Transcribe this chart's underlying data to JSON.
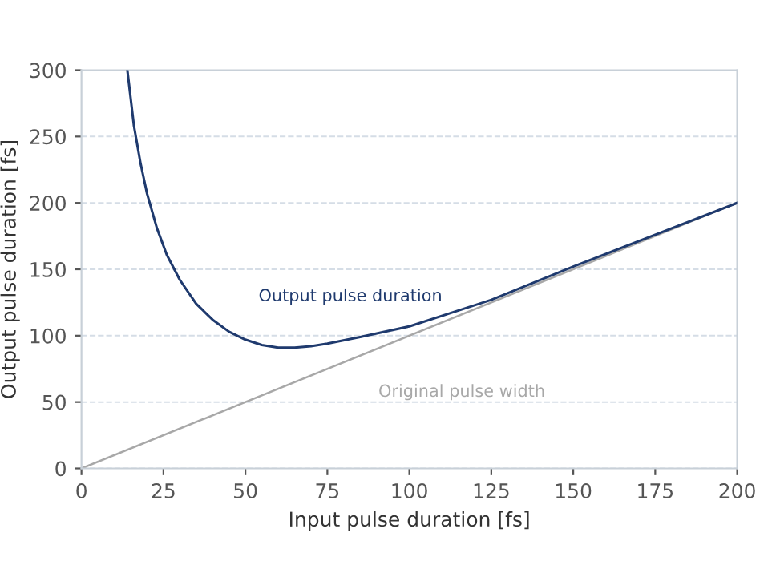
{
  "chart_data": {
    "type": "line",
    "xlabel": "Input pulse duration [fs]",
    "ylabel": "Output pulse duration [fs]",
    "xlim": [
      0,
      200
    ],
    "ylim": [
      0,
      300
    ],
    "xticks": [
      0,
      25,
      50,
      75,
      100,
      125,
      150,
      175,
      200
    ],
    "yticks": [
      0,
      50,
      100,
      150,
      200,
      250,
      300
    ],
    "grid": "y",
    "legend": false,
    "series": [
      {
        "name": "Output pulse duration",
        "color": "#1f3a6e",
        "x": [
          14,
          16,
          18,
          20,
          23,
          26,
          30,
          35,
          40,
          45,
          50,
          55,
          60,
          65,
          70,
          75,
          85,
          100,
          115,
          125,
          150,
          175,
          200
        ],
        "values": [
          300,
          258,
          230,
          207,
          181,
          161,
          142,
          124,
          112,
          103,
          97,
          93,
          91,
          91,
          92,
          94,
          99,
          107,
          119,
          127,
          152,
          176,
          200
        ]
      },
      {
        "name": "Original pulse width",
        "color": "#a8a8a8",
        "x": [
          0,
          200
        ],
        "values": [
          0,
          200
        ]
      }
    ]
  }
}
